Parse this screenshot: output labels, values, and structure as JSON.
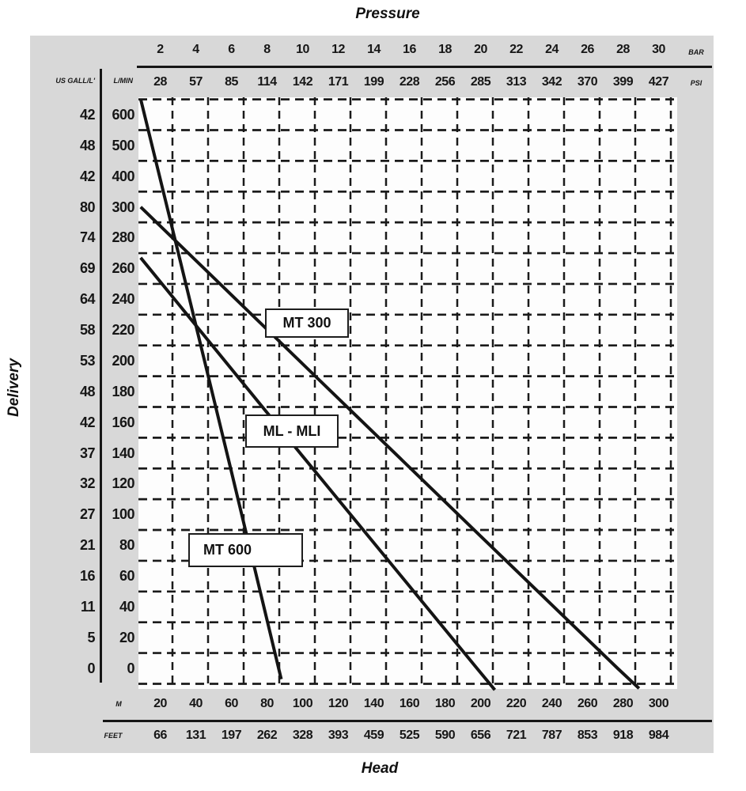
{
  "titles": {
    "pressure": "Pressure",
    "delivery": "Delivery",
    "head": "Head"
  },
  "pressure_axis": {
    "bar_unit": "BAR",
    "psi_unit": "PSI",
    "bar": [
      "2",
      "4",
      "6",
      "8",
      "10",
      "12",
      "14",
      "16",
      "18",
      "20",
      "22",
      "24",
      "26",
      "28",
      "30"
    ],
    "psi": [
      "28",
      "57",
      "85",
      "114",
      "142",
      "171",
      "199",
      "228",
      "256",
      "285",
      "313",
      "342",
      "370",
      "399",
      "427"
    ]
  },
  "delivery_axis": {
    "us_gall_header": "US GALL/L'",
    "lmin_header": "L/MIN",
    "us_gall": [
      "42",
      "48",
      "42",
      "80",
      "74",
      "69",
      "64",
      "58",
      "53",
      "48",
      "42",
      "37",
      "32",
      "27",
      "21",
      "16",
      "11",
      "5",
      "0"
    ],
    "l_min": [
      "600",
      "500",
      "400",
      "300",
      "280",
      "260",
      "240",
      "220",
      "200",
      "180",
      "160",
      "140",
      "120",
      "100",
      "80",
      "60",
      "40",
      "20",
      "0"
    ]
  },
  "head_axis": {
    "m_unit": "M",
    "feet_unit": "FEET",
    "m": [
      "20",
      "40",
      "60",
      "80",
      "100",
      "120",
      "140",
      "160",
      "180",
      "200",
      "220",
      "240",
      "260",
      "280",
      "300"
    ],
    "feet": [
      "66",
      "131",
      "197",
      "262",
      "328",
      "393",
      "459",
      "525",
      "590",
      "656",
      "721",
      "787",
      "853",
      "918",
      "984"
    ]
  },
  "curves": {
    "mt300_label": "MT 300",
    "mlmli_label": "ML - MLI",
    "mt600_label": "MT 600"
  },
  "chart_data": {
    "type": "line",
    "title": "Pump performance curves: Pressure / Delivery / Head",
    "xlabel": "Head",
    "ylabel": "Delivery",
    "x_axis_top_bar": [
      2,
      4,
      6,
      8,
      10,
      12,
      14,
      16,
      18,
      20,
      22,
      24,
      26,
      28,
      30
    ],
    "x_axis_top_psi": [
      28,
      57,
      85,
      114,
      142,
      171,
      199,
      228,
      256,
      285,
      313,
      342,
      370,
      399,
      427
    ],
    "x_axis_bottom_m": [
      20,
      40,
      60,
      80,
      100,
      120,
      140,
      160,
      180,
      200,
      220,
      240,
      260,
      280,
      300
    ],
    "x_axis_bottom_feet": [
      66,
      131,
      197,
      262,
      328,
      393,
      459,
      525,
      590,
      656,
      721,
      787,
      853,
      918,
      984
    ],
    "y_axis_l_min": [
      600,
      500,
      400,
      300,
      280,
      260,
      240,
      220,
      200,
      180,
      160,
      140,
      120,
      100,
      80,
      60,
      40,
      20,
      0
    ],
    "y_axis_us_gall": [
      42,
      48,
      42,
      80,
      74,
      69,
      64,
      58,
      53,
      48,
      42,
      37,
      32,
      27,
      21,
      16,
      11,
      5,
      0
    ],
    "y_scale_note": "non-linear scale: 100 L/MIN per division above 300, 20 L/MIN per division below 300",
    "grid": true,
    "legend_position": "labels on curves",
    "series": [
      {
        "name": "MT 600",
        "points_head_m_vs_l_min": [
          [
            9,
            651
          ],
          [
            30,
            271
          ],
          [
            60,
            128
          ],
          [
            88,
            -7
          ]
        ]
      },
      {
        "name": "MT 300",
        "points_head_m_vs_l_min": [
          [
            9,
            300
          ],
          [
            100,
            198
          ],
          [
            200,
            86
          ],
          [
            277,
            0
          ],
          [
            289,
            -13
          ]
        ]
      },
      {
        "name": "ML - MLI",
        "points_head_m_vs_l_min": [
          [
            9,
            267
          ],
          [
            100,
            138
          ],
          [
            198,
            0
          ],
          [
            208,
            -14
          ]
        ]
      }
    ]
  }
}
